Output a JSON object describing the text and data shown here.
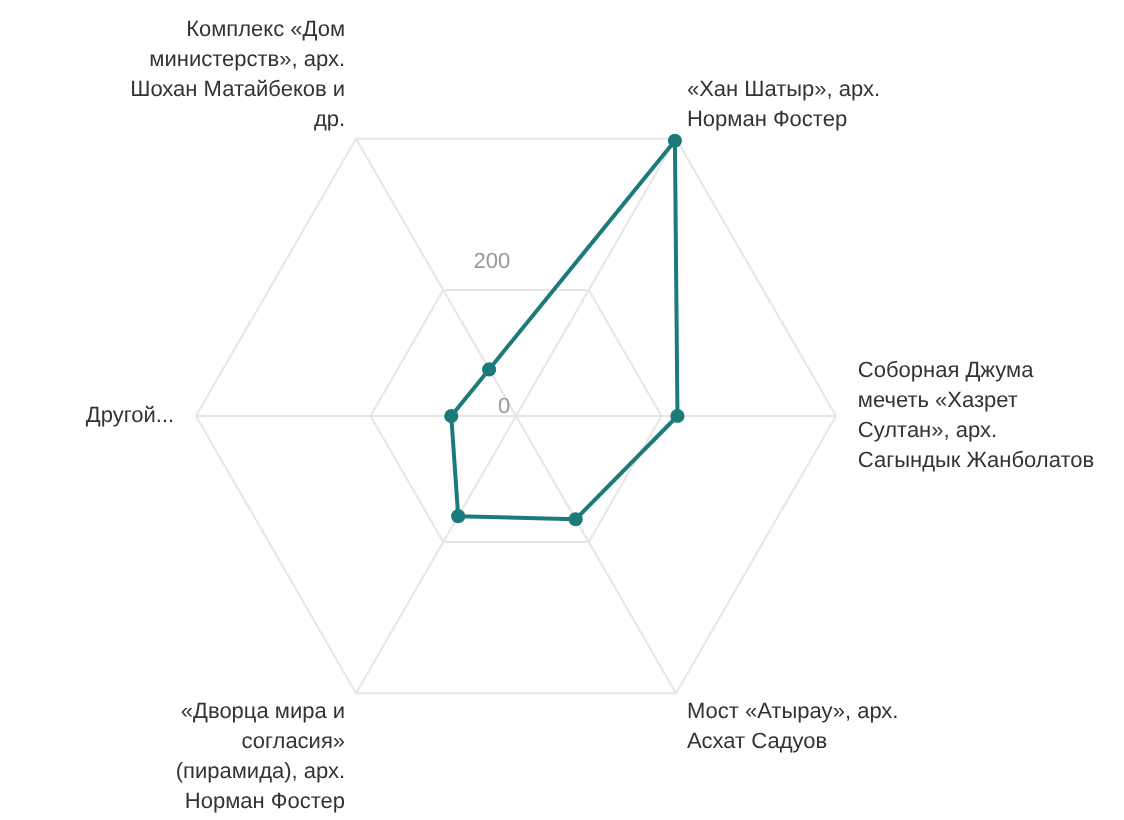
{
  "chart_data": {
    "type": "radar",
    "categories": [
      "«Хан Шатыр», арх. Норман Фостер",
      "Соборная Джума мечеть «Хазрет Султан», арх. Сагындык Жанболатов",
      "Мост «Атырау», арх. Асхат Садуов",
      "«Дворца мира и согласия» (пирамида), арх. Норман Фостер",
      "Другой...",
      "Комплекс «Дом министерств», арх. Шохан Матайбеков и др."
    ],
    "series": [
      {
        "color": "#1b7b7b",
        "values": [
          437,
          222,
          164,
          159,
          89,
          74
        ]
      }
    ],
    "ylim": [
      0,
      440
    ],
    "yticks": [
      0,
      200
    ],
    "grid": true,
    "marker": "circle",
    "line_style": "solid"
  }
}
